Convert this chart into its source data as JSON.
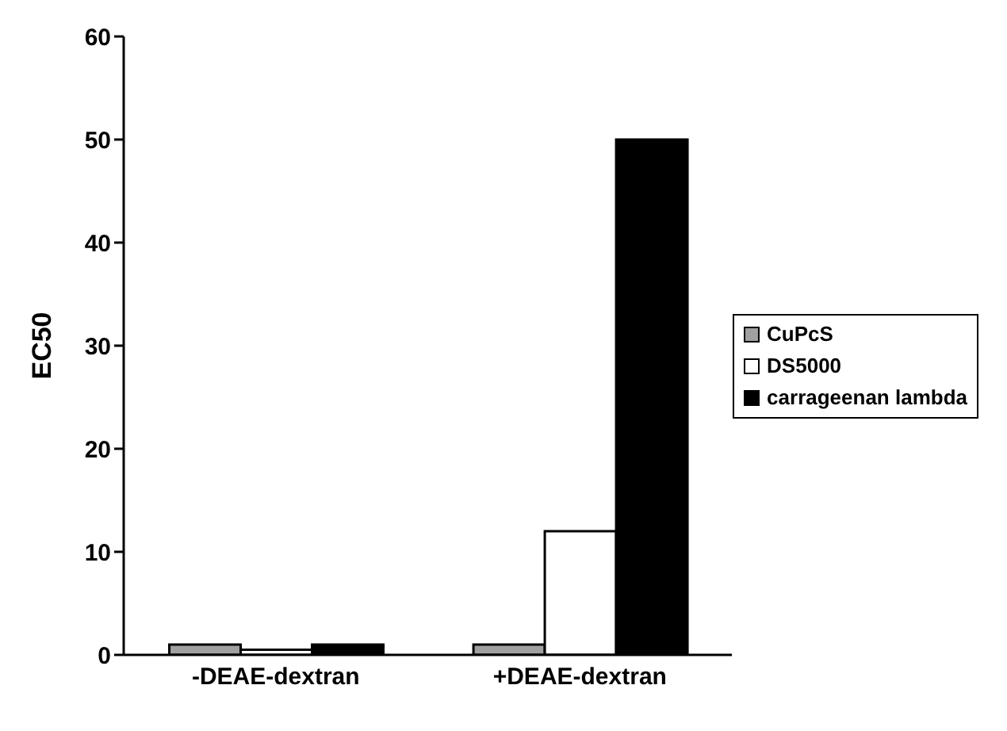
{
  "chart_data": {
    "type": "bar",
    "ylabel": "EC50",
    "categories": [
      "-DEAE-dextran",
      "+DEAE-dextran"
    ],
    "series": [
      {
        "name": "CuPcS",
        "color": "#a0a0a0",
        "values": [
          1,
          1
        ]
      },
      {
        "name": "DS5000",
        "color": "#ffffff",
        "values": [
          0.5,
          12
        ]
      },
      {
        "name": "carrageenan lambda",
        "color": "#000000",
        "values": [
          1,
          50
        ]
      }
    ],
    "ylim": [
      0,
      60
    ],
    "yticks": [
      0,
      10,
      20,
      30,
      40,
      50,
      60
    ],
    "grid": false,
    "legend": "right"
  }
}
